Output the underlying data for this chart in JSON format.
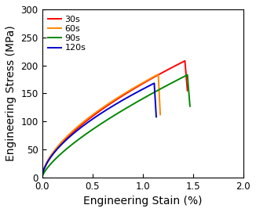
{
  "title": "",
  "xlabel": "Engineering Stain (%)",
  "ylabel": "Engineering Stress (MPa)",
  "xlim": [
    0.0,
    2.0
  ],
  "ylim": [
    0,
    300
  ],
  "xticks": [
    0.0,
    0.5,
    1.0,
    1.5,
    2.0
  ],
  "yticks": [
    0,
    50,
    100,
    150,
    200,
    250,
    300
  ],
  "series": [
    {
      "label": "30s",
      "color": "#ff0000",
      "peak_strain": 1.42,
      "peak_stress": 208,
      "drop_to": 155,
      "end_strain": 1.445,
      "exponent": 0.62
    },
    {
      "label": "60s",
      "color": "#ff8800",
      "peak_strain": 1.155,
      "peak_stress": 184,
      "drop_to": 112,
      "end_strain": 1.175,
      "exponent": 0.6
    },
    {
      "label": "90s",
      "color": "#008800",
      "peak_strain": 1.445,
      "peak_stress": 183,
      "drop_to": 127,
      "end_strain": 1.47,
      "exponent": 0.72
    },
    {
      "label": "120s",
      "color": "#0000cc",
      "peak_strain": 1.115,
      "peak_stress": 168,
      "drop_to": 108,
      "end_strain": 1.135,
      "exponent": 0.6
    }
  ],
  "legend_loc": "upper left",
  "legend_fontsize": 8,
  "axis_label_fontsize": 10,
  "tick_fontsize": 8.5,
  "linewidth": 1.4,
  "text_color": "#000000",
  "spine_color": "#000000",
  "background_color": "#ffffff"
}
